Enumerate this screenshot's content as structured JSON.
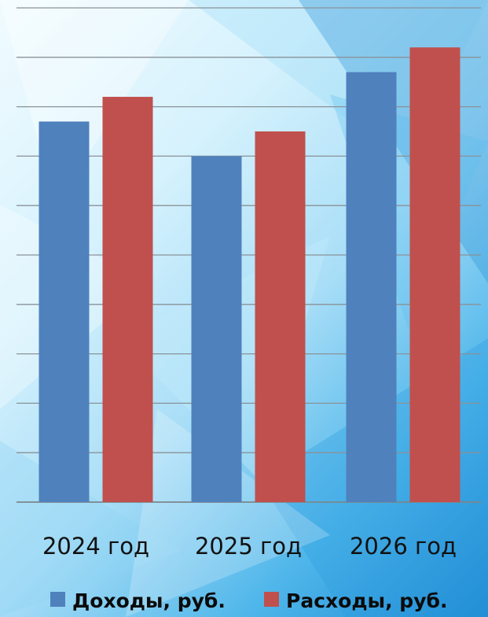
{
  "chart_data": {
    "type": "bar",
    "categories": [
      "2024 год",
      "2025 год",
      "2026 год"
    ],
    "series": [
      {
        "name": "Доходы, руб.",
        "values": [
          7.7,
          7.0,
          8.7
        ],
        "color": "#4f81bd"
      },
      {
        "name": "Расходы, руб.",
        "values": [
          8.2,
          7.5,
          9.2
        ],
        "color": "#c0504d"
      }
    ],
    "title": "",
    "xlabel": "",
    "ylabel": "",
    "ylim": [
      0,
      10
    ],
    "grid": true,
    "legend": "bottom"
  }
}
